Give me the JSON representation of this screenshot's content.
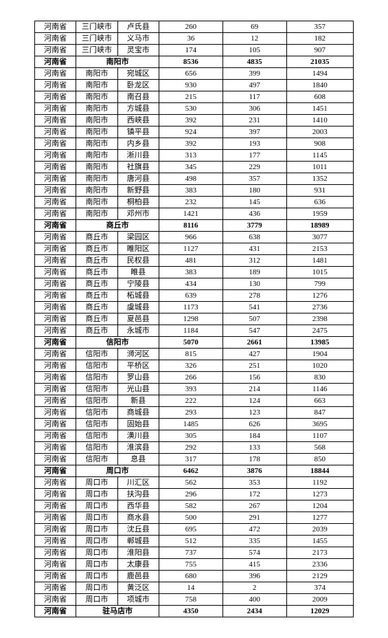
{
  "columns": [
    "province",
    "city",
    "county",
    "val1",
    "val2",
    "val3"
  ],
  "column_widths": [
    "13%",
    "13%",
    "13%",
    "20%",
    "20%",
    "21%"
  ],
  "background_color": "#ffffff",
  "border_color": "#000000",
  "font_family": "SimSun",
  "font_size_pt": 8,
  "rows": [
    {
      "type": "normal",
      "cells": [
        "河南省",
        "三门峡市",
        "卢氏县",
        "260",
        "69",
        "357"
      ]
    },
    {
      "type": "normal",
      "cells": [
        "河南省",
        "三门峡市",
        "义马市",
        "36",
        "12",
        "182"
      ]
    },
    {
      "type": "normal",
      "cells": [
        "河南省",
        "三门峡市",
        "灵宝市",
        "174",
        "105",
        "907"
      ]
    },
    {
      "type": "summary",
      "cells": [
        "河南省",
        "南阳市",
        "8536",
        "4835",
        "21035"
      ]
    },
    {
      "type": "normal",
      "cells": [
        "河南省",
        "南阳市",
        "宛城区",
        "656",
        "399",
        "1494"
      ]
    },
    {
      "type": "normal",
      "cells": [
        "河南省",
        "南阳市",
        "卧龙区",
        "930",
        "497",
        "1840"
      ]
    },
    {
      "type": "normal",
      "cells": [
        "河南省",
        "南阳市",
        "南召县",
        "215",
        "117",
        "608"
      ]
    },
    {
      "type": "normal",
      "cells": [
        "河南省",
        "南阳市",
        "方城县",
        "530",
        "306",
        "1451"
      ]
    },
    {
      "type": "normal",
      "cells": [
        "河南省",
        "南阳市",
        "西峡县",
        "392",
        "231",
        "1410"
      ]
    },
    {
      "type": "normal",
      "cells": [
        "河南省",
        "南阳市",
        "镇平县",
        "924",
        "397",
        "2003"
      ]
    },
    {
      "type": "normal",
      "cells": [
        "河南省",
        "南阳市",
        "内乡县",
        "392",
        "193",
        "908"
      ]
    },
    {
      "type": "normal",
      "cells": [
        "河南省",
        "南阳市",
        "淅川县",
        "313",
        "177",
        "1145"
      ]
    },
    {
      "type": "normal",
      "cells": [
        "河南省",
        "南阳市",
        "社旗县",
        "345",
        "229",
        "1011"
      ]
    },
    {
      "type": "normal",
      "cells": [
        "河南省",
        "南阳市",
        "唐河县",
        "498",
        "357",
        "1352"
      ]
    },
    {
      "type": "normal",
      "cells": [
        "河南省",
        "南阳市",
        "新野县",
        "383",
        "180",
        "931"
      ]
    },
    {
      "type": "normal",
      "cells": [
        "河南省",
        "南阳市",
        "桐柏县",
        "232",
        "145",
        "636"
      ]
    },
    {
      "type": "normal",
      "cells": [
        "河南省",
        "南阳市",
        "邓州市",
        "1421",
        "436",
        "1959"
      ]
    },
    {
      "type": "summary",
      "cells": [
        "河南省",
        "商丘市",
        "8116",
        "3779",
        "18989"
      ]
    },
    {
      "type": "normal",
      "cells": [
        "河南省",
        "商丘市",
        "梁园区",
        "966",
        "638",
        "3077"
      ]
    },
    {
      "type": "normal",
      "cells": [
        "河南省",
        "商丘市",
        "睢阳区",
        "1127",
        "431",
        "2153"
      ]
    },
    {
      "type": "normal",
      "cells": [
        "河南省",
        "商丘市",
        "民权县",
        "481",
        "312",
        "1481"
      ]
    },
    {
      "type": "normal",
      "cells": [
        "河南省",
        "商丘市",
        "睢县",
        "383",
        "189",
        "1015"
      ]
    },
    {
      "type": "normal",
      "cells": [
        "河南省",
        "商丘市",
        "宁陵县",
        "434",
        "130",
        "799"
      ]
    },
    {
      "type": "normal",
      "cells": [
        "河南省",
        "商丘市",
        "柘城县",
        "639",
        "278",
        "1276"
      ]
    },
    {
      "type": "normal",
      "cells": [
        "河南省",
        "商丘市",
        "虞城县",
        "1173",
        "541",
        "2736"
      ]
    },
    {
      "type": "normal",
      "cells": [
        "河南省",
        "商丘市",
        "夏邑县",
        "1298",
        "507",
        "2398"
      ]
    },
    {
      "type": "normal",
      "cells": [
        "河南省",
        "商丘市",
        "永城市",
        "1184",
        "547",
        "2475"
      ]
    },
    {
      "type": "summary",
      "cells": [
        "河南省",
        "信阳市",
        "5070",
        "2661",
        "13985"
      ]
    },
    {
      "type": "normal",
      "cells": [
        "河南省",
        "信阳市",
        "浉河区",
        "815",
        "427",
        "1904"
      ]
    },
    {
      "type": "normal",
      "cells": [
        "河南省",
        "信阳市",
        "平桥区",
        "326",
        "251",
        "1020"
      ]
    },
    {
      "type": "normal",
      "cells": [
        "河南省",
        "信阳市",
        "罗山县",
        "266",
        "156",
        "830"
      ]
    },
    {
      "type": "normal",
      "cells": [
        "河南省",
        "信阳市",
        "光山县",
        "393",
        "214",
        "1146"
      ]
    },
    {
      "type": "normal",
      "cells": [
        "河南省",
        "信阳市",
        "新县",
        "222",
        "124",
        "663"
      ]
    },
    {
      "type": "normal",
      "cells": [
        "河南省",
        "信阳市",
        "商城县",
        "293",
        "123",
        "847"
      ]
    },
    {
      "type": "normal",
      "cells": [
        "河南省",
        "信阳市",
        "固始县",
        "1485",
        "626",
        "3695"
      ]
    },
    {
      "type": "normal",
      "cells": [
        "河南省",
        "信阳市",
        "潢川县",
        "305",
        "184",
        "1107"
      ]
    },
    {
      "type": "normal",
      "cells": [
        "河南省",
        "信阳市",
        "淮滨县",
        "292",
        "133",
        "568"
      ]
    },
    {
      "type": "normal",
      "cells": [
        "河南省",
        "信阳市",
        "息县",
        "317",
        "178",
        "850"
      ]
    },
    {
      "type": "summary",
      "cells": [
        "河南省",
        "周口市",
        "6462",
        "3876",
        "18844"
      ]
    },
    {
      "type": "normal",
      "cells": [
        "河南省",
        "周口市",
        "川汇区",
        "562",
        "353",
        "1192"
      ]
    },
    {
      "type": "normal",
      "cells": [
        "河南省",
        "周口市",
        "扶沟县",
        "296",
        "172",
        "1273"
      ]
    },
    {
      "type": "normal",
      "cells": [
        "河南省",
        "周口市",
        "西华县",
        "582",
        "267",
        "1204"
      ]
    },
    {
      "type": "normal",
      "cells": [
        "河南省",
        "周口市",
        "商水县",
        "500",
        "291",
        "1277"
      ]
    },
    {
      "type": "normal",
      "cells": [
        "河南省",
        "周口市",
        "沈丘县",
        "695",
        "472",
        "2039"
      ]
    },
    {
      "type": "normal",
      "cells": [
        "河南省",
        "周口市",
        "郸城县",
        "512",
        "335",
        "1455"
      ]
    },
    {
      "type": "normal",
      "cells": [
        "河南省",
        "周口市",
        "淮阳县",
        "737",
        "574",
        "2173"
      ]
    },
    {
      "type": "normal",
      "cells": [
        "河南省",
        "周口市",
        "太康县",
        "755",
        "415",
        "2336"
      ]
    },
    {
      "type": "normal",
      "cells": [
        "河南省",
        "周口市",
        "鹿邑县",
        "680",
        "396",
        "2129"
      ]
    },
    {
      "type": "normal",
      "cells": [
        "河南省",
        "周口市",
        "黄泛区",
        "14",
        "2",
        "374"
      ]
    },
    {
      "type": "normal",
      "cells": [
        "河南省",
        "周口市",
        "项城市",
        "758",
        "400",
        "2009"
      ]
    },
    {
      "type": "summary",
      "cells": [
        "河南省",
        "驻马店市",
        "4350",
        "2434",
        "12029"
      ]
    }
  ]
}
